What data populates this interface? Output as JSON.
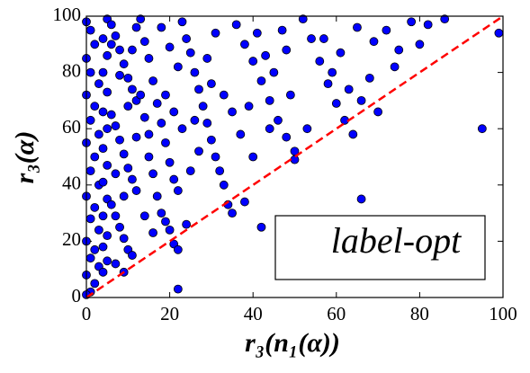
{
  "chart_data": {
    "type": "scatter",
    "x_label": "r₃(n₁(α))",
    "y_label": "r₃(α)",
    "annotation": "label-opt",
    "color": "#0000ff",
    "identity_line": true,
    "identity_color": "#ff0000",
    "xlim": [
      0,
      100
    ],
    "ylim": [
      0,
      100
    ],
    "xticks": [
      0,
      20,
      40,
      60,
      80,
      100
    ],
    "yticks": [
      0,
      20,
      40,
      60,
      80,
      100
    ],
    "x": [
      0,
      1,
      2,
      0,
      1,
      3,
      0,
      2,
      1,
      3,
      0,
      2,
      1,
      3,
      0,
      2,
      1,
      3,
      0,
      2,
      1,
      3,
      0,
      2,
      1,
      0,
      4,
      5,
      4,
      5,
      4,
      5,
      4,
      5,
      4,
      5,
      4,
      5,
      4,
      5,
      4,
      5,
      6,
      7,
      8,
      9,
      10,
      11,
      12,
      6,
      7,
      8,
      9,
      10,
      11,
      12,
      6,
      7,
      8,
      9,
      10,
      11,
      7,
      9,
      6,
      8,
      10,
      12,
      11,
      12,
      7,
      9,
      13,
      14,
      15,
      16,
      17,
      18,
      19,
      20,
      21,
      22,
      13,
      14,
      15,
      16,
      17,
      18,
      19,
      20,
      21,
      22,
      14,
      16,
      18,
      20,
      22,
      15,
      19,
      21,
      23,
      24,
      25,
      26,
      27,
      28,
      29,
      30,
      31,
      32,
      33,
      34,
      35,
      23,
      25,
      27,
      29,
      31,
      33,
      35,
      22,
      24,
      30,
      26,
      36,
      38,
      40,
      42,
      44,
      46,
      48,
      50,
      37,
      39,
      41,
      43,
      45,
      47,
      49,
      40,
      44,
      48,
      38,
      42,
      50,
      52,
      54,
      56,
      58,
      60,
      62,
      64,
      66,
      68,
      70,
      53,
      57,
      61,
      65,
      55,
      62,
      66,
      59,
      63,
      69,
      72,
      75,
      78,
      82,
      86,
      95,
      99,
      74,
      80
    ],
    "values": [
      98,
      95,
      90,
      85,
      80,
      76,
      72,
      68,
      63,
      58,
      55,
      50,
      45,
      40,
      36,
      32,
      28,
      24,
      20,
      17,
      14,
      11,
      8,
      5,
      2,
      1,
      9,
      99,
      92,
      86,
      80,
      73,
      66,
      60,
      53,
      47,
      41,
      35,
      29,
      22,
      18,
      13,
      97,
      93,
      88,
      83,
      78,
      74,
      70,
      65,
      61,
      56,
      51,
      46,
      42,
      38,
      33,
      29,
      25,
      21,
      17,
      15,
      12,
      9,
      90,
      79,
      68,
      57,
      88,
      96,
      44,
      36,
      99,
      91,
      85,
      77,
      69,
      62,
      55,
      48,
      42,
      38,
      72,
      64,
      50,
      44,
      36,
      30,
      27,
      24,
      19,
      17,
      29,
      23,
      96,
      89,
      82,
      58,
      72,
      66,
      98,
      92,
      87,
      80,
      74,
      68,
      62,
      56,
      50,
      45,
      40,
      33,
      30,
      60,
      45,
      52,
      85,
      94,
      72,
      66,
      3,
      26,
      76,
      63,
      97,
      90,
      84,
      77,
      70,
      63,
      57,
      52,
      58,
      68,
      94,
      86,
      80,
      95,
      72,
      50,
      60,
      88,
      34,
      25,
      49,
      99,
      92,
      84,
      76,
      69,
      63,
      58,
      70,
      78,
      66,
      60,
      92,
      87,
      96,
      27,
      21,
      35,
      80,
      74,
      91,
      95,
      88,
      98,
      97,
      99,
      60,
      94,
      82,
      90
    ]
  }
}
